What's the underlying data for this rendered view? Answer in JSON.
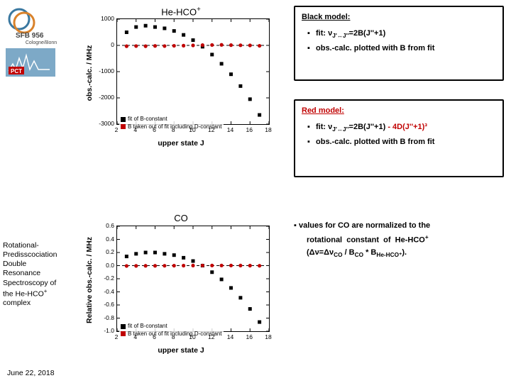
{
  "logos": {
    "sfb_text": "SFB 956",
    "sfb_sub": "Cologne/Bonn"
  },
  "left_block": {
    "line": "Rotational-Predisscociation Double Resonance Spectroscopy of the He-HCO⁺ complex"
  },
  "date": "June 22, 2018",
  "chart1": {
    "title": "He-HCO⁺",
    "xlabel": "upper state J",
    "ylabel": "obs.-calc. / MHz",
    "x_min": 2,
    "x_max": 18,
    "x_step": 2,
    "y_min": -3000,
    "y_max": 1000,
    "y_step": 1000,
    "series": [
      {
        "color": "#000000",
        "marker": "square",
        "name": "fit-of-B-constant",
        "points": [
          {
            "x": 3,
            "y": 500
          },
          {
            "x": 4,
            "y": 700
          },
          {
            "x": 5,
            "y": 750
          },
          {
            "x": 6,
            "y": 700
          },
          {
            "x": 7,
            "y": 650
          },
          {
            "x": 8,
            "y": 550
          },
          {
            "x": 9,
            "y": 400
          },
          {
            "x": 10,
            "y": 200
          },
          {
            "x": 11,
            "y": -50
          },
          {
            "x": 12,
            "y": -350
          },
          {
            "x": 13,
            "y": -700
          },
          {
            "x": 14,
            "y": -1100
          },
          {
            "x": 15,
            "y": -1550
          },
          {
            "x": 16,
            "y": -2050
          },
          {
            "x": 17,
            "y": -2650
          }
        ]
      },
      {
        "color": "#c00000",
        "marker": "circle",
        "name": "B-from-fit-incl-D",
        "points": [
          {
            "x": 3,
            "y": -30
          },
          {
            "x": 4,
            "y": -25
          },
          {
            "x": 5,
            "y": -30
          },
          {
            "x": 6,
            "y": -20
          },
          {
            "x": 7,
            "y": -25
          },
          {
            "x": 8,
            "y": -15
          },
          {
            "x": 9,
            "y": -10
          },
          {
            "x": 10,
            "y": 0
          },
          {
            "x": 11,
            "y": 10
          },
          {
            "x": 12,
            "y": 15
          },
          {
            "x": 13,
            "y": 20
          },
          {
            "x": 14,
            "y": 10
          },
          {
            "x": 15,
            "y": 5
          },
          {
            "x": 16,
            "y": 0
          },
          {
            "x": 17,
            "y": -15
          }
        ]
      }
    ],
    "legend": [
      {
        "color": "#000000",
        "label": "fit of B-constant"
      },
      {
        "color": "#c00000",
        "label": "B taken out of fit including D-constant"
      }
    ],
    "zero_line_y": 0
  },
  "chart2": {
    "title": "CO",
    "xlabel": "upper state J",
    "ylabel": "Relative obs.-calc. / MHz",
    "x_min": 2,
    "x_max": 18,
    "x_step": 2,
    "y_min": -1.0,
    "y_max": 0.6,
    "y_step": 0.2,
    "series": [
      {
        "color": "#000000",
        "marker": "square",
        "name": "fit-of-B-constant",
        "points": [
          {
            "x": 3,
            "y": 0.14
          },
          {
            "x": 4,
            "y": 0.18
          },
          {
            "x": 5,
            "y": 0.2
          },
          {
            "x": 6,
            "y": 0.2
          },
          {
            "x": 7,
            "y": 0.18
          },
          {
            "x": 8,
            "y": 0.16
          },
          {
            "x": 9,
            "y": 0.12
          },
          {
            "x": 10,
            "y": 0.07
          },
          {
            "x": 11,
            "y": 0.0
          },
          {
            "x": 12,
            "y": -0.1
          },
          {
            "x": 13,
            "y": -0.21
          },
          {
            "x": 14,
            "y": -0.34
          },
          {
            "x": 15,
            "y": -0.49
          },
          {
            "x": 16,
            "y": -0.66
          },
          {
            "x": 17,
            "y": -0.86
          }
        ]
      },
      {
        "color": "#c00000",
        "marker": "circle",
        "name": "B-from-fit-incl-D",
        "points": [
          {
            "x": 3,
            "y": -0.005
          },
          {
            "x": 4,
            "y": -0.004
          },
          {
            "x": 5,
            "y": -0.003
          },
          {
            "x": 6,
            "y": -0.003
          },
          {
            "x": 7,
            "y": -0.002
          },
          {
            "x": 8,
            "y": -0.001
          },
          {
            "x": 9,
            "y": 0.0
          },
          {
            "x": 10,
            "y": 0.001
          },
          {
            "x": 11,
            "y": 0.002
          },
          {
            "x": 12,
            "y": 0.002
          },
          {
            "x": 13,
            "y": 0.002
          },
          {
            "x": 14,
            "y": 0.002
          },
          {
            "x": 15,
            "y": 0.001
          },
          {
            "x": 16,
            "y": 0.0
          },
          {
            "x": 17,
            "y": -0.002
          }
        ]
      }
    ],
    "legend": [
      {
        "color": "#000000",
        "label": "fit of B-constant"
      },
      {
        "color": "#c00000",
        "label": "B taken out of fit including D-constant"
      }
    ],
    "zero_line_y": 0
  },
  "box1": {
    "heading": "Black model:",
    "bullets": [
      "fit: ν<sub>J'↔J''</sub>=2B(J''+1)",
      "obs.-calc. plotted with B from fit"
    ]
  },
  "box2": {
    "heading": "Red model:",
    "bullets": [
      "fit: ν<sub>J'↔J''</sub>=2B(J''+1) <span class='red'>- 4D(J''+1)³</span>",
      "obs.-calc. plotted with B from fit"
    ]
  },
  "right_text": {
    "line1_prefix": "▪  values for CO are normalized to the",
    "line2": "rotational constant of He-HCO⁺",
    "line3": "(Δν=Δν<sub>CO</sub> / B<sub>CO</sub> * B<sub>He-HCO⁺</sub>)."
  }
}
